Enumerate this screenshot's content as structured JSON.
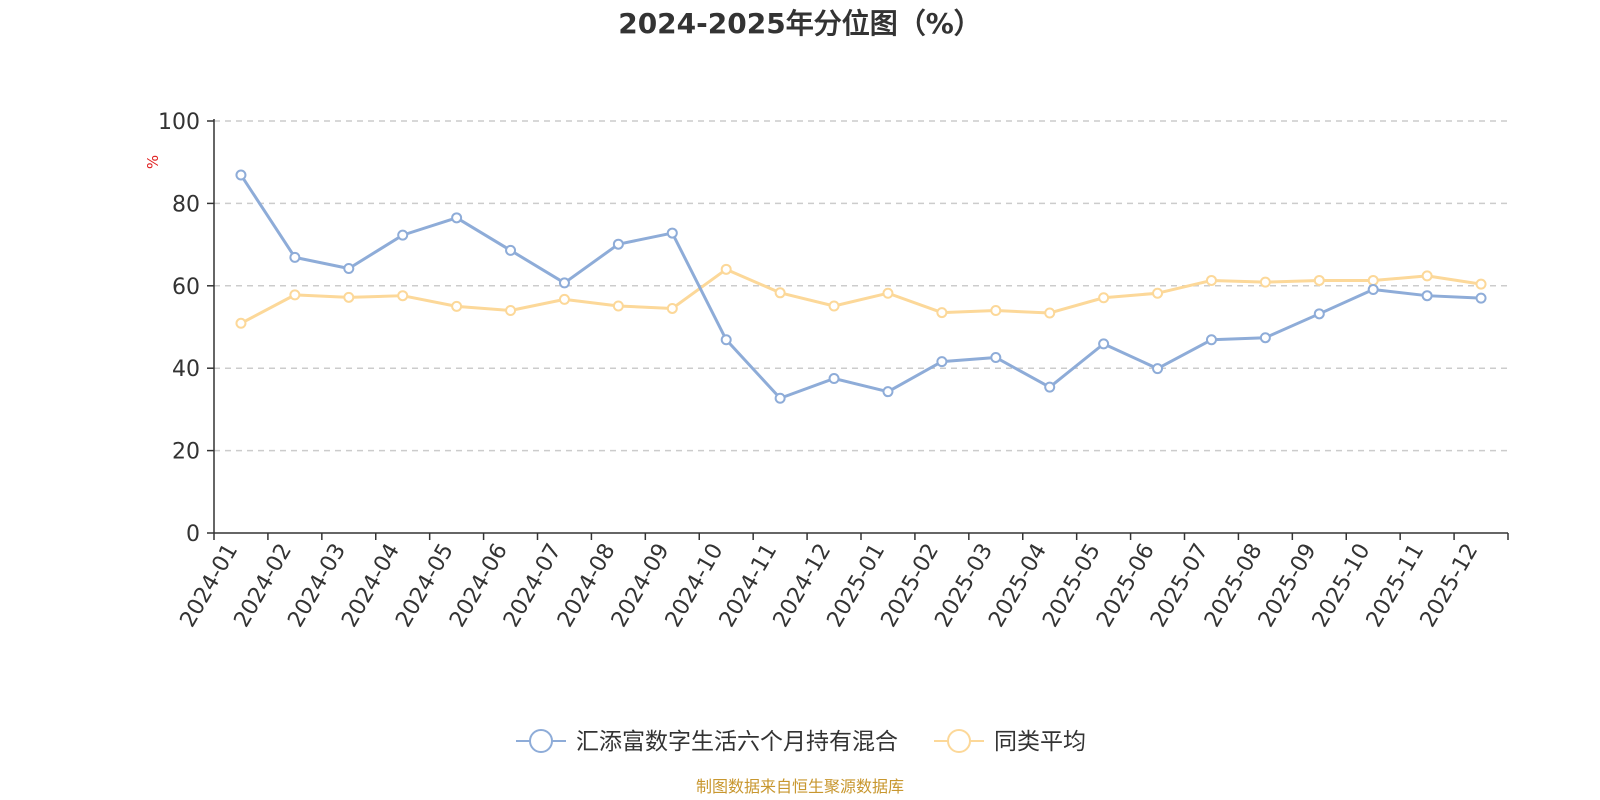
{
  "chart_data": {
    "type": "line",
    "title": "2024-2025年分位图（%）",
    "ylabel": "%",
    "ylim": [
      0,
      100
    ],
    "yticks": [
      "0",
      "20",
      "40",
      "60",
      "80",
      "100"
    ],
    "grid": true,
    "legend_position": "bottom",
    "categories": [
      "2024-01",
      "2024-02",
      "2024-03",
      "2024-04",
      "2024-05",
      "2024-06",
      "2024-07",
      "2024-08",
      "2024-09",
      "2024-10",
      "2024-11",
      "2024-12",
      "2025-01",
      "2025-02",
      "2025-03",
      "2025-04",
      "2025-05",
      "2025-06",
      "2025-07",
      "2025-08",
      "2025-09",
      "2025-10",
      "2025-11",
      "2025-12"
    ],
    "series": [
      {
        "name": "汇添富数字生活六个月持有混合",
        "color": "#8eacd8",
        "values": [
          86.9,
          66.9,
          64.2,
          72.3,
          76.5,
          68.6,
          60.7,
          70.1,
          72.8,
          46.9,
          32.7,
          37.5,
          34.3,
          41.6,
          42.6,
          35.4,
          45.9,
          39.9,
          46.9,
          47.4,
          53.2,
          59.1,
          57.6,
          57.0
        ]
      },
      {
        "name": "同类平均",
        "color": "#fcd899",
        "values": [
          50.9,
          57.8,
          57.2,
          57.6,
          55.0,
          54.0,
          56.7,
          55.1,
          54.5,
          64.0,
          58.3,
          55.1,
          58.2,
          53.5,
          54.0,
          53.4,
          57.1,
          58.2,
          61.3,
          60.9,
          61.3,
          61.3,
          62.4,
          60.4
        ]
      }
    ],
    "footer": "制图数据来自恒生聚源数据库"
  }
}
